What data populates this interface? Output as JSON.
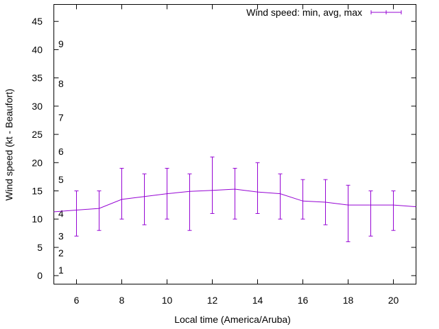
{
  "chart_data": {
    "type": "line",
    "title": "",
    "xlabel": "Local time (America/Aruba)",
    "ylabel": "Wind speed (kt - Beaufort)",
    "xlim": [
      5,
      21
    ],
    "ylim": [
      -1.5,
      48
    ],
    "x_ticks": [
      6,
      8,
      10,
      12,
      14,
      16,
      18,
      20
    ],
    "y_ticks": [
      0,
      5,
      10,
      15,
      20,
      25,
      30,
      35,
      40,
      45
    ],
    "beaufort_labels": [
      {
        "label": "1",
        "kt": 1
      },
      {
        "label": "2",
        "kt": 4
      },
      {
        "label": "3",
        "kt": 7
      },
      {
        "label": "4",
        "kt": 11
      },
      {
        "label": "5",
        "kt": 17
      },
      {
        "label": "6",
        "kt": 22
      },
      {
        "label": "7",
        "kt": 28
      },
      {
        "label": "8",
        "kt": 34
      },
      {
        "label": "9",
        "kt": 41
      }
    ],
    "grid": false,
    "legend": {
      "position": "top-right"
    },
    "series": [
      {
        "name": "Wind speed: min, avg, max",
        "color": "#9400d3",
        "x": [
          5,
          6,
          7,
          8,
          9,
          10,
          11,
          12,
          13,
          14,
          15,
          16,
          17,
          18,
          19,
          20,
          21
        ],
        "avg": [
          11.3,
          11.6,
          11.9,
          13.5,
          14.0,
          14.5,
          14.9,
          15.1,
          15.3,
          14.8,
          14.5,
          13.2,
          13.0,
          12.5,
          12.5,
          12.5,
          12.2
        ],
        "min": [
          null,
          7,
          8,
          10,
          9,
          10,
          8,
          11,
          10,
          11,
          10,
          10,
          9,
          6,
          7,
          8,
          null
        ],
        "max": [
          null,
          15,
          15,
          19,
          18,
          19,
          18,
          21,
          19,
          20,
          18,
          17,
          17,
          16,
          15,
          15,
          null
        ]
      }
    ]
  }
}
